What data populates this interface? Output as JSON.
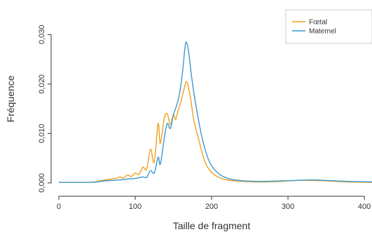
{
  "chart_data": {
    "type": "line",
    "title": "",
    "xlabel": "Taille de fragment",
    "ylabel": "Fréquence",
    "xlim": [
      -10,
      410
    ],
    "ylim": [
      -0.001,
      0.035
    ],
    "xticks": [
      0,
      100,
      200,
      300,
      400
    ],
    "xtick_labels": [
      "0",
      "100",
      "200",
      "300",
      "400"
    ],
    "yticks": [
      0.0,
      0.01,
      0.02,
      0.03
    ],
    "ytick_labels": [
      "0,000",
      "0,010",
      "0,020",
      "0,030"
    ],
    "grid": false,
    "legend": {
      "position": "top-right"
    },
    "series": [
      {
        "name": "Fœtal",
        "color": "#f0a01e",
        "points": [
          [
            0,
            0.0001
          ],
          [
            40,
            0.0001
          ],
          [
            50,
            0.0003
          ],
          [
            60,
            0.0006
          ],
          [
            70,
            0.0008
          ],
          [
            75,
            0.0009
          ],
          [
            80,
            0.0012
          ],
          [
            85,
            0.001
          ],
          [
            90,
            0.0016
          ],
          [
            95,
            0.0013
          ],
          [
            100,
            0.002
          ],
          [
            105,
            0.0017
          ],
          [
            110,
            0.0032
          ],
          [
            115,
            0.0028
          ],
          [
            120,
            0.0068
          ],
          [
            125,
            0.0042
          ],
          [
            130,
            0.012
          ],
          [
            133,
            0.008
          ],
          [
            138,
            0.013
          ],
          [
            142,
            0.014
          ],
          [
            146,
            0.0118
          ],
          [
            150,
            0.0138
          ],
          [
            153,
            0.0128
          ],
          [
            156,
            0.0145
          ],
          [
            160,
            0.0165
          ],
          [
            164,
            0.019
          ],
          [
            167,
            0.0205
          ],
          [
            170,
            0.0192
          ],
          [
            173,
            0.0165
          ],
          [
            177,
            0.0125
          ],
          [
            182,
            0.0095
          ],
          [
            187,
            0.0065
          ],
          [
            192,
            0.004
          ],
          [
            198,
            0.0025
          ],
          [
            205,
            0.0015
          ],
          [
            215,
            0.0008
          ],
          [
            230,
            0.0004
          ],
          [
            260,
            0.0002
          ],
          [
            290,
            0.0003
          ],
          [
            310,
            0.0005
          ],
          [
            330,
            0.0005
          ],
          [
            350,
            0.0004
          ],
          [
            380,
            0.0002
          ],
          [
            410,
            0.0001
          ]
        ]
      },
      {
        "name": "Maternel",
        "color": "#3a9ad0",
        "points": [
          [
            0,
            0.0001
          ],
          [
            40,
            0.0001
          ],
          [
            50,
            0.0002
          ],
          [
            60,
            0.0004
          ],
          [
            70,
            0.0005
          ],
          [
            80,
            0.0006
          ],
          [
            90,
            0.0008
          ],
          [
            100,
            0.0009
          ],
          [
            110,
            0.0012
          ],
          [
            115,
            0.0011
          ],
          [
            120,
            0.0025
          ],
          [
            125,
            0.002
          ],
          [
            130,
            0.0052
          ],
          [
            133,
            0.0038
          ],
          [
            138,
            0.009
          ],
          [
            142,
            0.012
          ],
          [
            146,
            0.011
          ],
          [
            150,
            0.0138
          ],
          [
            154,
            0.0155
          ],
          [
            158,
            0.018
          ],
          [
            162,
            0.0225
          ],
          [
            165,
            0.027
          ],
          [
            167,
            0.0285
          ],
          [
            170,
            0.0265
          ],
          [
            173,
            0.0225
          ],
          [
            177,
            0.018
          ],
          [
            182,
            0.0135
          ],
          [
            187,
            0.0095
          ],
          [
            192,
            0.0065
          ],
          [
            198,
            0.004
          ],
          [
            205,
            0.0025
          ],
          [
            215,
            0.0013
          ],
          [
            230,
            0.0006
          ],
          [
            260,
            0.0003
          ],
          [
            290,
            0.0004
          ],
          [
            310,
            0.0005
          ],
          [
            330,
            0.0006
          ],
          [
            350,
            0.0005
          ],
          [
            380,
            0.0003
          ],
          [
            410,
            0.0002
          ]
        ]
      }
    ]
  }
}
